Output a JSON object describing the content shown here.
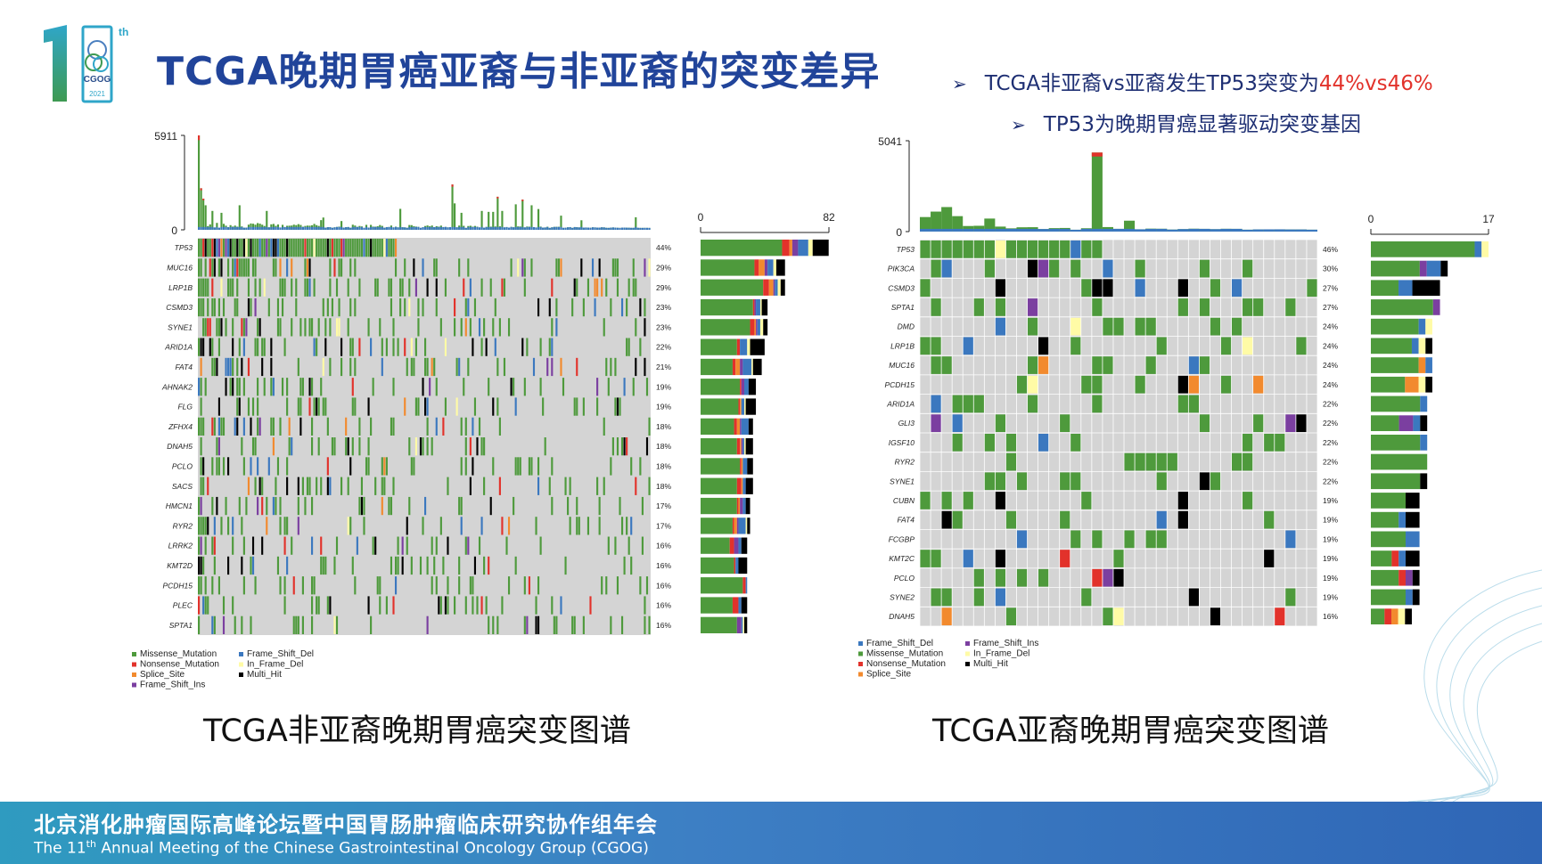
{
  "slide": {
    "logo": {
      "number": "1",
      "superscript": "th",
      "org": "CGOG",
      "year": "2021"
    },
    "title": "TCGA晚期胃癌亚裔与非亚裔的突变差异",
    "bullets": [
      {
        "text_before": "TCGA非亚裔vs亚裔发生TP53突变为",
        "highlight": "44%vs46%"
      },
      {
        "text_before": "TP53为晚期胃癌显著驱动突变基因",
        "highlight": ""
      }
    ],
    "captions": {
      "left": "TCGA非亚裔晚期胃癌突变图谱",
      "right": "TCGA亚裔晚期胃癌突变图谱"
    },
    "footer": {
      "cn": "北京消化肿瘤国际高峰论坛暨中国胃肠肿瘤临床研究协作组年会",
      "en_pre": "The 11",
      "en_sup": "th",
      "en_post": " Annual Meeting of the Chinese Gastrointestinal Oncology Group (CGOG)"
    },
    "colors": {
      "title": "#21449a",
      "highlight": "#e2322b",
      "footer": "#3d7fc4",
      "Missense_Mutation": "#4e9a3c",
      "Nonsense_Mutation": "#e2322b",
      "Splice_Site": "#f28a2e",
      "Frame_Shift_Ins": "#7b3fa0",
      "Frame_Shift_Del": "#3b78bf",
      "In_Frame_Del": "#fffba6",
      "Multi_Hit": "#000000",
      "Background": "#d4d4d4"
    }
  },
  "chart_data": [
    {
      "type": "oncoplot",
      "tmb_axis": {
        "max": 5911,
        "min": 0
      },
      "freq_axis": {
        "min": 0,
        "max": 82
      },
      "genes": [
        "TP53",
        "MUC16",
        "LRP1B",
        "CSMD3",
        "SYNE1",
        "ARID1A",
        "FAT4",
        "AHNAK2",
        "FLG",
        "ZFHX4",
        "DNAH5",
        "PCLO",
        "SACS",
        "HMCN1",
        "RYR2",
        "LRRK2",
        "KMT2D",
        "PCDH15",
        "PLEC",
        "SPTA1"
      ],
      "percent_labels": [
        "44%",
        "29%",
        "29%",
        "23%",
        "23%",
        "22%",
        "21%",
        "19%",
        "19%",
        "18%",
        "18%",
        "18%",
        "18%",
        "17%",
        "17%",
        "16%",
        "16%",
        "16%",
        "16%",
        "16%"
      ],
      "percent": [
        44,
        29,
        29,
        23,
        23,
        22,
        21,
        19,
        19,
        18,
        18,
        18,
        18,
        17,
        17,
        16,
        16,
        16,
        16,
        16
      ],
      "legend": [
        "Missense_Mutation",
        "Nonsense_Mutation",
        "Splice_Site",
        "Frame_Shift_Ins",
        "Frame_Shift_Del",
        "In_Frame_Del",
        "Multi_Hit"
      ]
    },
    {
      "type": "oncoplot",
      "tmb_axis": {
        "max": 5041,
        "min": 0
      },
      "freq_axis": {
        "min": 0,
        "max": 17
      },
      "genes": [
        "TP53",
        "PIK3CA",
        "CSMD3",
        "SPTA1",
        "DMD",
        "LRP1B",
        "MUC16",
        "PCDH15",
        "ARID1A",
        "GLI3",
        "IGSF10",
        "RYR2",
        "SYNE1",
        "CUBN",
        "FAT4",
        "FCGBP",
        "KMT2C",
        "PCLO",
        "SYNE2",
        "DNAH5"
      ],
      "percent_labels": [
        "46%",
        "30%",
        "27%",
        "27%",
        "24%",
        "24%",
        "24%",
        "24%",
        "22%",
        "22%",
        "22%",
        "22%",
        "22%",
        "19%",
        "19%",
        "19%",
        "19%",
        "19%",
        "19%",
        "16%"
      ],
      "percent": [
        46,
        30,
        27,
        27,
        24,
        24,
        24,
        24,
        22,
        22,
        22,
        22,
        22,
        19,
        19,
        19,
        19,
        19,
        19,
        16
      ],
      "legend": [
        "Frame_Shift_Del",
        "Missense_Mutation",
        "Nonsense_Mutation",
        "Splice_Site",
        "Frame_Shift_Ins",
        "In_Frame_Del",
        "Multi_Hit"
      ]
    }
  ]
}
